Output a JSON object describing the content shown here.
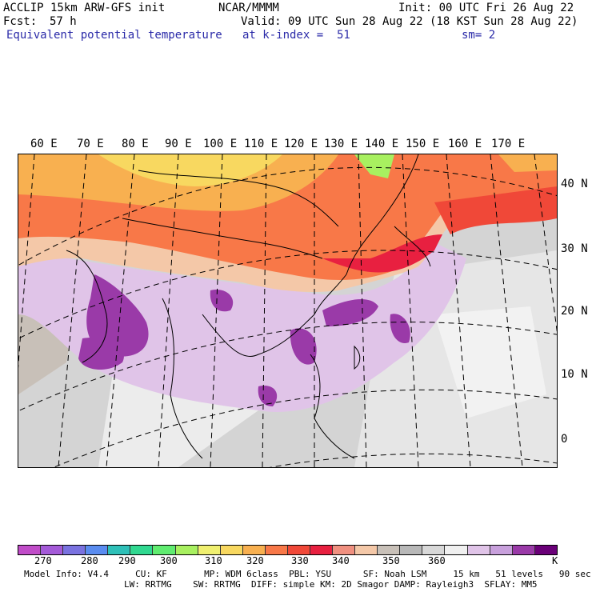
{
  "header": {
    "model": "ACCLIP 15km ARW-GFS init",
    "org": "NCAR/MMMM",
    "init": "Init: 00 UTC Fri 26 Aug 22",
    "fcst_label": "Fcst:",
    "fcst_value": "57 h",
    "valid": "Valid: 09 UTC Sun 28 Aug 22 (18 KST Sun 28 Aug 22)",
    "field": "Equivalent potential temperature",
    "level": "at k-index =  51",
    "smooth": "sm= 2"
  },
  "map": {
    "lon_labels": [
      "60 E",
      "70 E",
      "80 E",
      "90 E",
      "100 E",
      "110 E",
      "120 E",
      "130 E",
      "140 E",
      "150 E",
      "160 E",
      "170 E"
    ],
    "lat_labels": [
      "40 N",
      "30 N",
      "20 N",
      "10 N",
      "0"
    ]
  },
  "colorbar": {
    "colors": [
      "#c04cc8",
      "#a45ad8",
      "#7a72e0",
      "#5a8cf0",
      "#2ec0b8",
      "#30d890",
      "#60ec70",
      "#a8f060",
      "#f0f070",
      "#f8d860",
      "#f8b050",
      "#f87848",
      "#f04838",
      "#e82040",
      "#f09080",
      "#f4c8a8",
      "#c8c0b8",
      "#b8b8b8",
      "#d8d8d8",
      "#f0f0f0",
      "#e0c4e8",
      "#c8a0dc",
      "#9a3aa8",
      "#6a0078"
    ],
    "ticks": [
      "270",
      "280",
      "290",
      "300",
      "310",
      "320",
      "330",
      "340",
      "350",
      "360",
      "K"
    ]
  },
  "footer": {
    "line1": "Model Info: V4.4     CU: KF       MP: WDM 6class  PBL: YSU      SF: Noah LSM     15 km   51 levels   90 sec",
    "line2": "LW: RRTMG    SW: RRTMG  DIFF: simple KM: 2D Smagor DAMP: Rayleigh3  SFLAY: MM5"
  }
}
